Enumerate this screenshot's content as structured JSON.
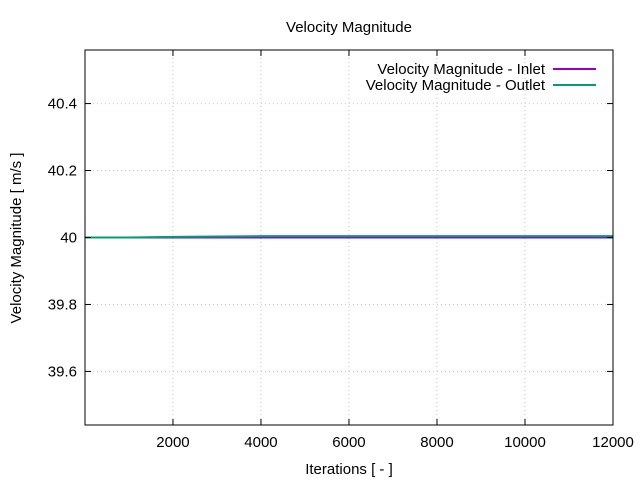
{
  "chart_data": {
    "type": "line",
    "title": "Velocity Magnitude",
    "xlabel": "Iterations [ - ]",
    "ylabel": "Velocity Magnitude [ m/s ]",
    "xlim": [
      1,
      12000
    ],
    "ylim": [
      39.44,
      40.56
    ],
    "xticks": [
      2000,
      4000,
      6000,
      8000,
      10000,
      12000
    ],
    "xtick_labels": [
      "2000",
      "4000",
      "6000",
      "8000",
      "10000",
      "12000"
    ],
    "yticks": [
      39.6,
      39.8,
      40,
      40.2,
      40.4
    ],
    "ytick_labels": [
      "39.6",
      "39.8",
      "40",
      "40.2",
      "40.4"
    ],
    "grid": true,
    "legend_position": "top-right",
    "series": [
      {
        "name": "Velocity Magnitude - Inlet",
        "color": "#9400d3",
        "x": [
          1,
          2000,
          4000,
          6000,
          8000,
          10000,
          12000
        ],
        "y": [
          40.0,
          40.0,
          40.0,
          40.0,
          40.0,
          40.0,
          40.0
        ]
      },
      {
        "name": "Velocity Magnitude - Outlet",
        "color": "#009e73",
        "x": [
          1,
          1000,
          2000,
          3000,
          4000,
          5000,
          6000,
          8000,
          10000,
          12000
        ],
        "y": [
          40.0,
          40.0,
          40.002,
          40.003,
          40.004,
          40.004,
          40.004,
          40.004,
          40.004,
          40.004
        ]
      }
    ]
  }
}
